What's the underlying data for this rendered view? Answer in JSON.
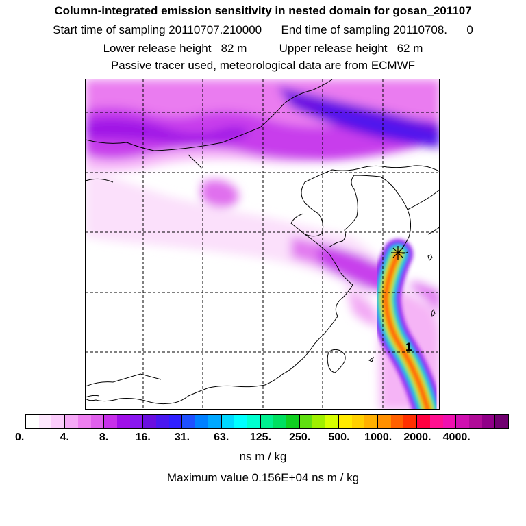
{
  "header": {
    "title": "Column-integrated emission sensitivity in nested domain for gosan_201107",
    "line2": "Start time of sampling 20110707.210000      End time of sampling 20110708.      0",
    "line3": "Lower release height   82 m          Upper release height   62 m",
    "line4": "Passive tracer used, meteorological data are from ECMWF"
  },
  "map": {
    "receptor_marker": "star-marker-icon",
    "track_label": "1"
  },
  "colorbar": {
    "colors": [
      "#ffffff",
      "#fde7fd",
      "#fbccfb",
      "#f5a8f6",
      "#ee7ff0",
      "#e060ec",
      "#c830ea",
      "#a010e8",
      "#8a18f0",
      "#6a0fe0",
      "#4a18f0",
      "#3020ff",
      "#1e50ff",
      "#0080ff",
      "#00a8ff",
      "#00d8ff",
      "#00ffff",
      "#00ffd0",
      "#00f090",
      "#00e060",
      "#10d020",
      "#60e010",
      "#a0f000",
      "#d8ff00",
      "#ffea00",
      "#ffd000",
      "#ffb000",
      "#ff9000",
      "#ff6000",
      "#ff3000",
      "#ff0040",
      "#ff1090",
      "#f010b0",
      "#d010b0",
      "#b00c98",
      "#900088",
      "#700070"
    ],
    "ticks": [
      "0.",
      "4.",
      "8.",
      "16.",
      "31.",
      "63.",
      "125.",
      "250.",
      "500.",
      "1000.",
      "2000.",
      "4000."
    ],
    "units": "ns m / kg"
  },
  "footer": {
    "max_value_text": "Maximum value  0.156E+04 ns m / kg"
  }
}
